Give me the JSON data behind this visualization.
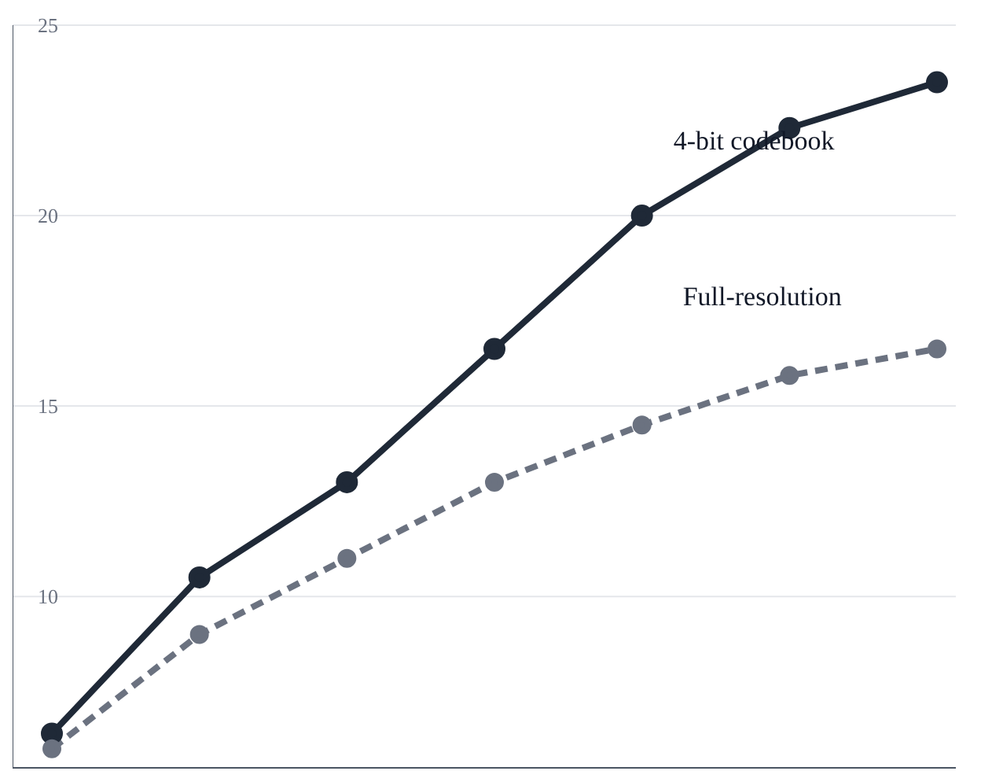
{
  "chart_data": {
    "type": "line",
    "categories": [
      null,
      null,
      null,
      null,
      null,
      null,
      null
    ],
    "ylim": [
      5.5,
      25
    ],
    "yticks": [
      10,
      15,
      20,
      25
    ],
    "grid": "y",
    "legend": "top right",
    "tick_labels": "y",
    "marker": "circle",
    "series": [
      {
        "name": "4-bit codebook",
        "color": "#1f2937",
        "values": [
          6.4,
          10.5,
          13.0,
          16.5,
          20.0,
          22.3,
          23.5
        ],
        "line_style": "solid"
      },
      {
        "name": "Full-resolution",
        "color": "#6b7280",
        "values": [
          6.0,
          9.0,
          11.0,
          13.0,
          14.5,
          15.8,
          16.5
        ],
        "line_style": "dashed"
      }
    ]
  }
}
